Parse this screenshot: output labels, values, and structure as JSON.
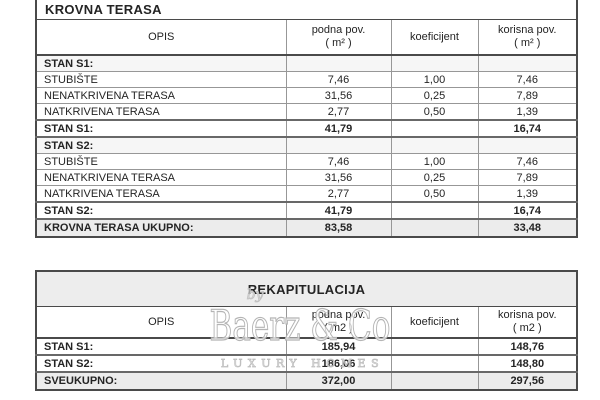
{
  "watermark": {
    "by": "by",
    "brand": "Baerz & Co",
    "tagline": "LUXURY HOMES"
  },
  "tables": [
    {
      "title": "KROVNA TERASA",
      "headers": [
        {
          "label": "OPIS",
          "sub": ""
        },
        {
          "label": "podna pov.",
          "sub": "( m² )"
        },
        {
          "label": "koeficijent",
          "sub": ""
        },
        {
          "label": "korisna pov.",
          "sub": "( m² )"
        }
      ],
      "rows": [
        {
          "style": "section",
          "opis": "STAN S1:",
          "podna": "",
          "koef": "",
          "korisna": ""
        },
        {
          "style": "data",
          "opis": "STUBIŠTE",
          "podna": "7,46",
          "koef": "1,00",
          "korisna": "7,46"
        },
        {
          "style": "data",
          "opis": "NENATKRIVENA TERASA",
          "podna": "31,56",
          "koef": "0,25",
          "korisna": "7,89"
        },
        {
          "style": "data",
          "opis": "NATKRIVENA TERASA",
          "podna": "2,77",
          "koef": "0,50",
          "korisna": "1,39"
        },
        {
          "style": "subtotal",
          "opis": "STAN S1:",
          "podna": "41,79",
          "koef": "",
          "korisna": "16,74"
        },
        {
          "style": "section",
          "opis": "STAN S2:",
          "podna": "",
          "koef": "",
          "korisna": ""
        },
        {
          "style": "data",
          "opis": "STUBIŠTE",
          "podna": "7,46",
          "koef": "1,00",
          "korisna": "7,46"
        },
        {
          "style": "data",
          "opis": "NENATKRIVENA TERASA",
          "podna": "31,56",
          "koef": "0,25",
          "korisna": "7,89"
        },
        {
          "style": "data",
          "opis": "NATKRIVENA TERASA",
          "podna": "2,77",
          "koef": "0,50",
          "korisna": "1,39"
        },
        {
          "style": "subtotal",
          "opis": "STAN S2:",
          "podna": "41,79",
          "koef": "",
          "korisna": "16,74"
        },
        {
          "style": "total",
          "opis": "KROVNA TERASA UKUPNO:",
          "podna": "83,58",
          "koef": "",
          "korisna": "33,48"
        }
      ]
    },
    {
      "title": "REKAPITULACIJA",
      "headers": [
        {
          "label": "OPIS",
          "sub": ""
        },
        {
          "label": "podna pov.",
          "sub": "( m2 )"
        },
        {
          "label": "koeficijent",
          "sub": ""
        },
        {
          "label": "korisna pov.",
          "sub": "( m2 )"
        }
      ],
      "rows": [
        {
          "style": "subtotal",
          "opis": "STAN S1:",
          "podna": "185,94",
          "koef": "",
          "korisna": "148,76"
        },
        {
          "style": "subtotal",
          "opis": "STAN S2:",
          "podna": "186,06",
          "koef": "",
          "korisna": "148,80"
        },
        {
          "style": "total",
          "opis": "SVEUKUPNO:",
          "podna": "372,00",
          "koef": "",
          "korisna": "297,56"
        }
      ]
    }
  ]
}
